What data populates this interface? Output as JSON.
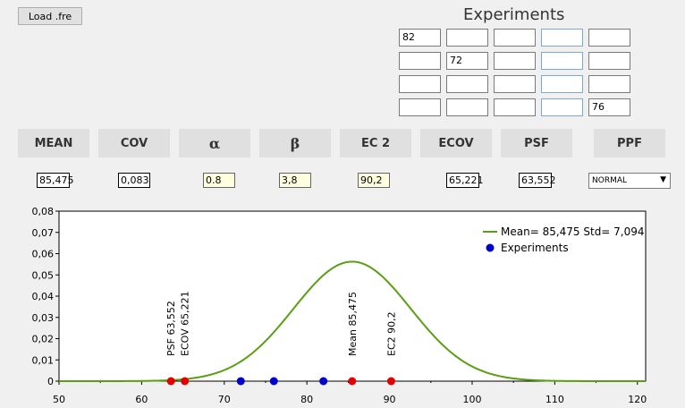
{
  "load_button": "Load .fre",
  "experiments_title": "Experiments",
  "grid": [
    [
      "82",
      "",
      "",
      "",
      ""
    ],
    [
      "",
      "72",
      "",
      "",
      ""
    ],
    [
      "",
      "",
      "",
      "",
      ""
    ],
    [
      "",
      "",
      "",
      "",
      "76"
    ]
  ],
  "headers": [
    "MEAN",
    "COV",
    "α",
    "β",
    "EC 2",
    "ECOV",
    "PSF",
    "PPF"
  ],
  "values": {
    "mean": "85,475",
    "cov": "0,083",
    "alpha": "0.8",
    "beta": "3,8",
    "ec2": "90,2",
    "ecov": "65,221",
    "psf": "63,552"
  },
  "ppf_selected": "NORMAL",
  "colors": {
    "curve": "#5a9e14",
    "experiment_point": "#0000cc",
    "marker_point": "#e00000"
  },
  "chart_data": {
    "type": "line",
    "xlim": [
      50,
      121
    ],
    "ylim": [
      0,
      0.08
    ],
    "x_ticks": [
      "50",
      "60",
      "70",
      "80",
      "90",
      "100",
      "110",
      "120"
    ],
    "y_ticks": [
      "0",
      "0,01",
      "0,02",
      "0,03",
      "0,04",
      "0,05",
      "0,06",
      "0,07",
      "0,08"
    ],
    "curve": {
      "name": "Mean= 85,475 Std= 7,094",
      "mean": 85.475,
      "std": 7.094
    },
    "experiments": {
      "name": "Experiments",
      "x": [
        72,
        76,
        82,
        85.475
      ],
      "y": [
        0,
        0,
        0,
        0
      ]
    },
    "markers": [
      {
        "x": 63.552,
        "label": "PSF  63,552"
      },
      {
        "x": 65.221,
        "label": "ECOV 65,221"
      },
      {
        "x": 85.475,
        "label": "Mean 85,475"
      },
      {
        "x": 90.2,
        "label": "EC2  90,2"
      }
    ]
  }
}
